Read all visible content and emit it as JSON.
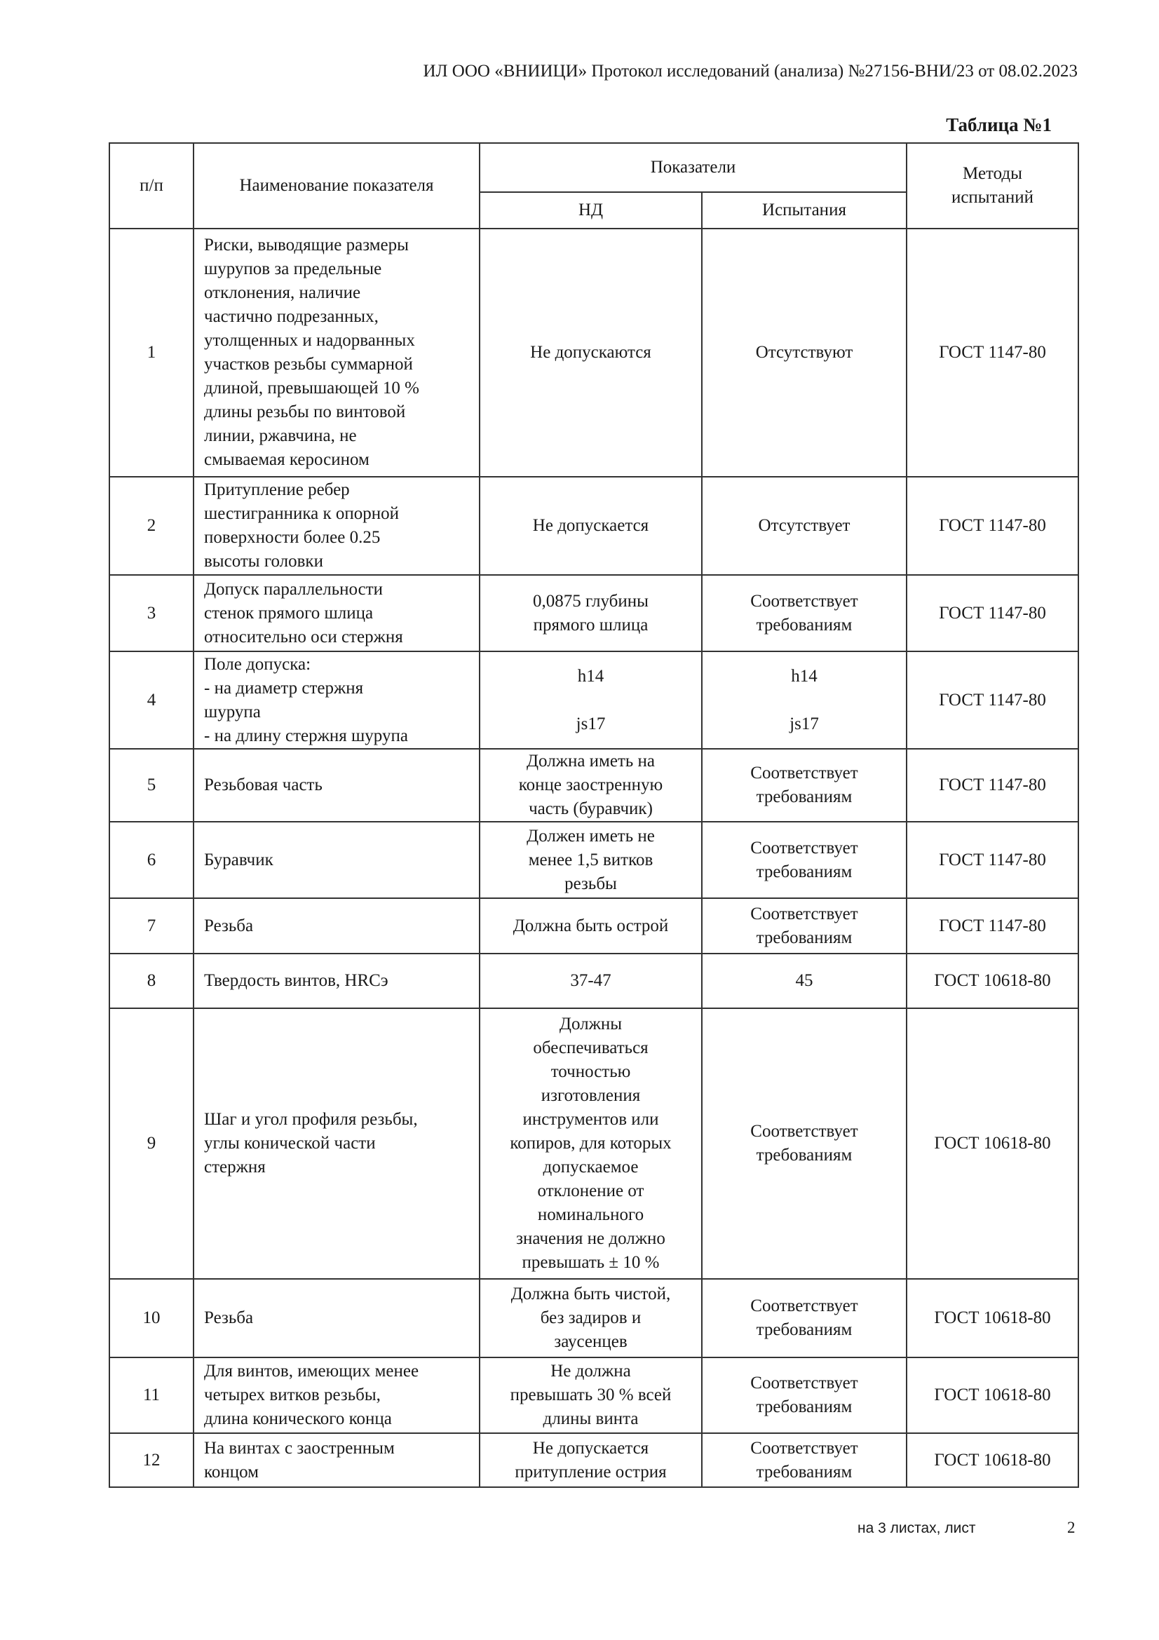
{
  "header": "ИЛ ООО «ВНИИЦИ» Протокол исследований (анализа)  №27156-ВНИ/23 от  08.02.2023",
  "table_title": "Таблица №1",
  "columns": {
    "num": "п/п",
    "name": "Наименование показателя",
    "indicators": "Показатели",
    "nd": "НД",
    "test": "Испытания",
    "methods": "Методы\nиспытаний"
  },
  "rows": [
    {
      "num": "1",
      "name": "Риски, выводящие размеры\nшурупов за предельные\nотклонения, наличие\nчастично подрезанных,\nутолщенных и надорванных\nучастков резьбы суммарной\nдлиной, превышающей 10 %\nдлины резьбы по винтовой\nлинии, ржавчина, не\nсмываемая керосином",
      "nd": "Не допускаются",
      "test": "Отсутствуют",
      "method": "ГОСТ 1147-80"
    },
    {
      "num": "2",
      "name": "Притупление ребер\nшестигранника к опорной\nповерхности более 0.25\nвысоты головки",
      "nd": "Не допускается",
      "test": "Отсутствует",
      "method": "ГОСТ 1147-80"
    },
    {
      "num": "3",
      "name": "Допуск параллельности\nстенок прямого шлица\nотносительно оси стержня",
      "nd": "0,0875 глубины\nпрямого шлица",
      "test": "Соответствует\nтребованиям",
      "method": "ГОСТ 1147-80"
    },
    {
      "num": "4",
      "name": "Поле допуска:\n- на диаметр стержня\nшурупа\n- на длину стержня шурупа",
      "nd": "h14\n\njs17",
      "test": "h14\n\njs17",
      "method": "ГОСТ 1147-80"
    },
    {
      "num": "5",
      "name": "Резьбовая часть",
      "nd": "Должна иметь на\nконце заостренную\nчасть (буравчик)",
      "test": "Соответствует\nтребованиям",
      "method": "ГОСТ 1147-80"
    },
    {
      "num": "6",
      "name": "Буравчик",
      "nd": "Должен иметь не\nменее 1,5 витков\nрезьбы",
      "test": "Соответствует\nтребованиям",
      "method": "ГОСТ 1147-80"
    },
    {
      "num": "7",
      "name": "Резьба",
      "nd": "Должна быть острой",
      "test": "Соответствует\nтребованиям",
      "method": "ГОСТ 1147-80"
    },
    {
      "num": "8",
      "name": "Твердость винтов, HRCэ",
      "nd": "37-47",
      "test": "45",
      "method": "ГОСТ 10618-80"
    },
    {
      "num": "9",
      "name": "Шаг и угол профиля резьбы,\nуглы конической части\nстержня",
      "nd": "Должны\nобеспечиваться\nточностью\nизготовления\nинструментов или\nкопиров, для которых\nдопускаемое\nотклонение от\nноминального\nзначения не должно\nпревышать ± 10 %",
      "test": "Соответствует\nтребованиям",
      "method": "ГОСТ 10618-80"
    },
    {
      "num": "10",
      "name": "Резьба",
      "nd": "Должна быть чистой,\nбез задиров и\nзаусенцев",
      "test": "Соответствует\nтребованиям",
      "method": "ГОСТ 10618-80"
    },
    {
      "num": "11",
      "name": "Для винтов, имеющих менее\nчетырех витков резьбы,\nдлина конического конца",
      "nd": "Не должна\nпревышать 30 % всей\nдлины винта",
      "test": "Соответствует\nтребованиям",
      "method": "ГОСТ 10618-80"
    },
    {
      "num": "12",
      "name": "На винтах с заостренным\nконцом",
      "nd": "Не допускается\nпритупление острия",
      "test": "Соответствует\nтребованиям",
      "method": "ГОСТ 10618-80"
    }
  ],
  "footer": {
    "text": "на 3  листах, лист",
    "page": "2"
  }
}
